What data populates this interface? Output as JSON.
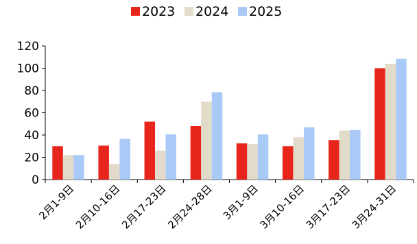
{
  "chart_data": {
    "type": "bar",
    "categories": [
      "2月1-9日",
      "2月10-16日",
      "2月17-23日",
      "2月24-28日",
      "3月1-9日",
      "3月10-16日",
      "3月17-23日",
      "3月24-31日"
    ],
    "series": [
      {
        "name": "2023",
        "color": "#e8251d",
        "values": [
          30,
          30.5,
          52,
          48,
          32.5,
          30,
          35.5,
          100
        ]
      },
      {
        "name": "2024",
        "color": "#e3dbc9",
        "values": [
          22,
          14,
          26,
          70,
          32,
          38,
          44,
          104
        ]
      },
      {
        "name": "2025",
        "color": "#a9c9f7",
        "values": [
          22,
          36.5,
          40.5,
          78.5,
          40.5,
          47,
          44.5,
          108.5
        ]
      }
    ],
    "ylim": [
      0,
      120
    ],
    "yticks": [
      0,
      20,
      40,
      60,
      80,
      100,
      120
    ],
    "legend_position": "top-center",
    "grid": false
  }
}
